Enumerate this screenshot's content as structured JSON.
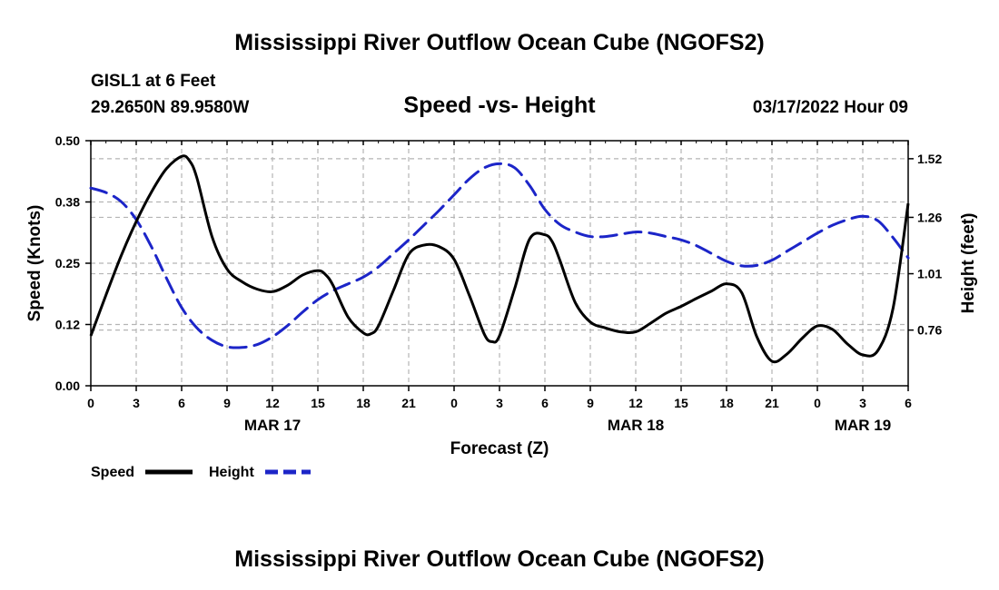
{
  "header": {
    "title": "Mississippi River Outflow Ocean Cube (NGOFS2)",
    "station": "GISL1 at 6 Feet",
    "coords": "29.2650N  89.9580W",
    "datetime": "03/17/2022 Hour 09",
    "footer_title": "Mississippi River Outflow Ocean Cube (NGOFS2)"
  },
  "chart_data": {
    "type": "line",
    "title": "Speed -vs- Height",
    "xlabel": "Forecast (Z)",
    "ylabel_left": "Speed (Knots)",
    "ylabel_right": "Height (feet)",
    "x_range": [
      0,
      54
    ],
    "x_ticks": [
      0,
      3,
      6,
      9,
      12,
      15,
      18,
      21,
      24,
      27,
      30,
      33,
      36,
      39,
      42,
      45,
      48,
      51,
      54
    ],
    "x_tick_labels": [
      "0",
      "3",
      "6",
      "9",
      "12",
      "15",
      "18",
      "21",
      "0",
      "3",
      "6",
      "9",
      "12",
      "15",
      "18",
      "21",
      "0",
      "3",
      "6"
    ],
    "date_labels": [
      {
        "x": 12,
        "text": "MAR 17"
      },
      {
        "x": 36,
        "text": "MAR 18"
      },
      {
        "x": 51,
        "text": "MAR 19"
      }
    ],
    "y_left": {
      "range": [
        0,
        0.5
      ],
      "ticks": [
        0,
        0.125,
        0.25,
        0.375,
        0.5
      ],
      "tick_labels": [
        "0.00",
        "0.12",
        "0.25",
        "0.38",
        "0.50"
      ]
    },
    "y_right": {
      "range": [
        0.513,
        1.6
      ],
      "ticks": [
        0.76,
        1.01,
        1.26,
        1.52
      ],
      "tick_labels": [
        "0.76",
        "1.01",
        "1.26",
        "1.52"
      ]
    },
    "grid": true,
    "legend_position": "bottom-left",
    "series": [
      {
        "name": "Speed",
        "axis": "left",
        "color": "#000000",
        "dash": "solid",
        "x": [
          0,
          1,
          2,
          3,
          4,
          5,
          6,
          6.5,
          7,
          8,
          9,
          10,
          11,
          12,
          13,
          14,
          15,
          15.5,
          16,
          17,
          18,
          18.5,
          19,
          20,
          21,
          22,
          23,
          24,
          25,
          26,
          26.5,
          27,
          28,
          29,
          30,
          30.5,
          31,
          32,
          33,
          34,
          35,
          36,
          37,
          38,
          39,
          40,
          41,
          42,
          43,
          44,
          45,
          46,
          47,
          48,
          49,
          50,
          51,
          52,
          53,
          54
        ],
        "values": [
          0.102,
          0.185,
          0.265,
          0.335,
          0.395,
          0.443,
          0.468,
          0.46,
          0.425,
          0.305,
          0.238,
          0.212,
          0.197,
          0.192,
          0.205,
          0.226,
          0.235,
          0.227,
          0.205,
          0.14,
          0.108,
          0.106,
          0.122,
          0.195,
          0.268,
          0.287,
          0.284,
          0.258,
          0.185,
          0.105,
          0.09,
          0.102,
          0.198,
          0.3,
          0.308,
          0.293,
          0.255,
          0.17,
          0.13,
          0.118,
          0.11,
          0.11,
          0.128,
          0.148,
          0.162,
          0.178,
          0.193,
          0.208,
          0.19,
          0.1,
          0.05,
          0.065,
          0.097,
          0.122,
          0.115,
          0.085,
          0.063,
          0.072,
          0.158,
          0.372
        ]
      },
      {
        "name": "Height",
        "axis": "right",
        "color": "#1c25c8",
        "dash": "dashed",
        "x": [
          0,
          1,
          2,
          3,
          4,
          5,
          6,
          7,
          8,
          9,
          10,
          11,
          12,
          13,
          14,
          15,
          16,
          17,
          18,
          19,
          20,
          21,
          22,
          23,
          24,
          25,
          26,
          27,
          28,
          29,
          30,
          31,
          32,
          33,
          34,
          35,
          36,
          37,
          38,
          39,
          40,
          41,
          42,
          43,
          44,
          45,
          46,
          47,
          48,
          49,
          50,
          51,
          52,
          53,
          54
        ],
        "values": [
          1.39,
          1.37,
          1.33,
          1.25,
          1.13,
          0.99,
          0.86,
          0.77,
          0.715,
          0.686,
          0.683,
          0.696,
          0.73,
          0.78,
          0.84,
          0.895,
          0.935,
          0.965,
          0.995,
          1.04,
          1.1,
          1.16,
          1.225,
          1.29,
          1.36,
          1.43,
          1.48,
          1.498,
          1.48,
          1.4,
          1.295,
          1.228,
          1.195,
          1.175,
          1.175,
          1.185,
          1.195,
          1.19,
          1.175,
          1.16,
          1.135,
          1.1,
          1.065,
          1.045,
          1.047,
          1.07,
          1.11,
          1.15,
          1.19,
          1.225,
          1.25,
          1.265,
          1.245,
          1.17,
          1.08
        ]
      }
    ]
  }
}
